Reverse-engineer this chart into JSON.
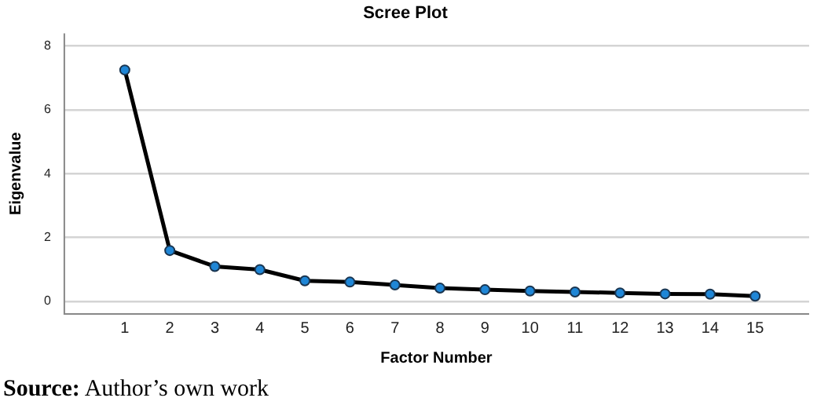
{
  "chart_data": {
    "type": "line",
    "title": "Scree Plot",
    "xlabel": "Factor Number",
    "ylabel": "Eigenvalue",
    "x": [
      1,
      2,
      3,
      4,
      5,
      6,
      7,
      8,
      9,
      10,
      11,
      12,
      13,
      14,
      15
    ],
    "series": [
      {
        "color": "#000000",
        "values": [
          7.25,
          1.59,
          1.09,
          0.99,
          0.64,
          0.6,
          0.51,
          0.41,
          0.36,
          0.32,
          0.29,
          0.26,
          0.23,
          0.22,
          0.16
        ]
      }
    ],
    "xlim": [
      -0.36,
      16.2
    ],
    "xticks": [
      1,
      2,
      3,
      4,
      5,
      6,
      7,
      8,
      9,
      10,
      11,
      12,
      13,
      14,
      15
    ],
    "ylim": [
      -0.4,
      8.4
    ],
    "yticks": [
      0,
      2,
      4,
      6,
      8
    ],
    "grid": "y",
    "legend": false,
    "marker": "circle",
    "line_style": "solid",
    "annotations": [
      "Source: Author’s own work"
    ]
  }
}
